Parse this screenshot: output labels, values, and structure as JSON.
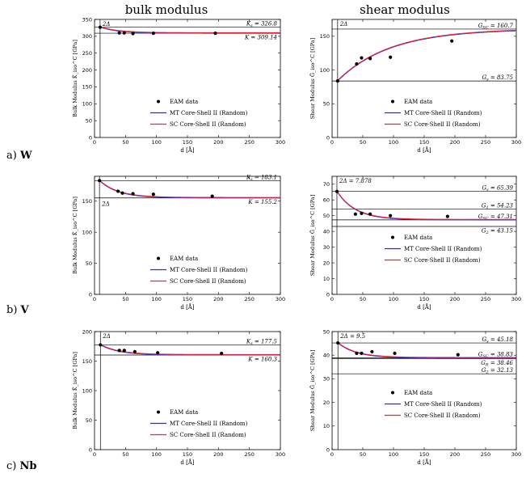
{
  "column_titles": [
    "bulk modulus",
    "shear modulus"
  ],
  "row_labels": [
    {
      "prefix": "a)",
      "element": "W"
    },
    {
      "prefix": "b)",
      "element": "V"
    },
    {
      "prefix": "c)",
      "element": "Nb"
    }
  ],
  "colors": {
    "mt": "#2b2bd6",
    "sc": "#e8263a",
    "points": "#000000",
    "axes": "#000000"
  },
  "chart_data": [
    {
      "id": "w-bulk",
      "type": "scatter+line",
      "xlabel": "d [Å]",
      "ylabel": "Bulk Modulus K̄_iso^C  [GPa]",
      "xlim": [
        0,
        300
      ],
      "ylim": [
        0,
        350
      ],
      "xticks": [
        0,
        50,
        100,
        150,
        200,
        250,
        300
      ],
      "yticks": [
        0,
        50,
        100,
        150,
        200,
        250,
        300,
        350
      ],
      "vline": {
        "x": 9,
        "label": "2Δ"
      },
      "hlines": [
        {
          "y": 326.8,
          "label": "K_s = 326.8",
          "pos": "above"
        },
        {
          "y": 309.14,
          "label": "K = 309.14",
          "pos": "below"
        }
      ],
      "points": [
        [
          9,
          326.8
        ],
        [
          40,
          310
        ],
        [
          48,
          310
        ],
        [
          62,
          308
        ],
        [
          95,
          309
        ],
        [
          195,
          309
        ]
      ],
      "curve": {
        "inf": 309.14,
        "surface": 326.8,
        "d0": 9
      },
      "series": [
        {
          "name": "EAM data"
        },
        {
          "name": "MT Core-Shell II (Random)"
        },
        {
          "name": "SC Core-Shell II (Random)"
        }
      ]
    },
    {
      "id": "w-shear",
      "type": "scatter+line",
      "xlabel": "d [Å]",
      "ylabel": "Shear Modulus Ḡ_iso^C  [GPa]",
      "xlim": [
        0,
        300
      ],
      "ylim": [
        0,
        175
      ],
      "xticks": [
        0,
        50,
        100,
        150,
        200,
        250,
        300
      ],
      "yticks": [
        0,
        50,
        100,
        150
      ],
      "vline": {
        "x": 9,
        "label": "2Δ"
      },
      "hlines": [
        {
          "y": 160.7,
          "label": "G_SC = 160.7",
          "pos": "above"
        },
        {
          "y": 83.75,
          "label": "G_s = 83.75",
          "pos": "above"
        }
      ],
      "points": [
        [
          9,
          83.75
        ],
        [
          40,
          109
        ],
        [
          48,
          118
        ],
        [
          62,
          117
        ],
        [
          95,
          119
        ],
        [
          195,
          143
        ]
      ],
      "curve": {
        "inf": 160.7,
        "surface": 83.75,
        "d0": 9
      },
      "series": [
        {
          "name": "EAM data"
        },
        {
          "name": "MT Core-Shell II (Random)"
        },
        {
          "name": "SC Core-Shell II (Random)"
        }
      ]
    },
    {
      "id": "v-bulk",
      "type": "scatter+line",
      "xlabel": "d [Å]",
      "ylabel": "Bulk Modulus K̄_iso^C  [GPa]",
      "xlim": [
        0,
        300
      ],
      "ylim": [
        0,
        190
      ],
      "xticks": [
        0,
        50,
        100,
        150,
        200,
        250,
        300
      ],
      "yticks": [
        0,
        50,
        100,
        150
      ],
      "vline": {
        "x": 8,
        "label": "2Δ"
      },
      "hlines": [
        {
          "y": 183.1,
          "label": "K_s = 183.1",
          "pos": "above"
        },
        {
          "y": 155.2,
          "label": "K = 155.2",
          "pos": "below"
        }
      ],
      "points": [
        [
          8,
          183.1
        ],
        [
          38,
          166
        ],
        [
          45,
          163
        ],
        [
          62,
          162
        ],
        [
          95,
          161
        ],
        [
          190,
          158
        ]
      ],
      "curve": {
        "inf": 155.2,
        "surface": 183.1,
        "d0": 8
      },
      "series": [
        {
          "name": "EAM data"
        },
        {
          "name": "MT Core-Shell II (Random)"
        },
        {
          "name": "SC Core-Shell II (Random)"
        }
      ]
    },
    {
      "id": "v-shear",
      "type": "scatter+line",
      "xlabel": "d [Å]",
      "ylabel": "Shear Modulus Ḡ_iso^C  [GPa]",
      "xlim": [
        0,
        300
      ],
      "ylim": [
        0,
        75
      ],
      "xticks": [
        0,
        50,
        100,
        150,
        200,
        250,
        300
      ],
      "yticks": [
        0,
        10,
        20,
        30,
        40,
        50,
        60,
        70
      ],
      "vline": {
        "x": 7.878,
        "label": "2Δ = 7.878"
      },
      "hlines": [
        {
          "y": 65.39,
          "label": "G_s = 65.39",
          "pos": "above"
        },
        {
          "y": 54.23,
          "label": "G_1 = 54.23",
          "pos": "above"
        },
        {
          "y": 47.31,
          "label": "G_SC = 47.31",
          "pos": "above"
        },
        {
          "y": 43.15,
          "label": "G_2 = 43.15",
          "pos": "below"
        }
      ],
      "points": [
        [
          8,
          65.39
        ],
        [
          38,
          51
        ],
        [
          48,
          51.5
        ],
        [
          62,
          51
        ],
        [
          95,
          50
        ],
        [
          188,
          49.5
        ]
      ],
      "curve": {
        "inf": 47.31,
        "surface": 65.39,
        "d0": 7.878
      },
      "series": [
        {
          "name": "EAM data"
        },
        {
          "name": "MT Core-Shell II (Random)"
        },
        {
          "name": "SC Core-Shell II (Random)"
        }
      ]
    },
    {
      "id": "nb-bulk",
      "type": "scatter+line",
      "xlabel": "d [Å]",
      "ylabel": "Bulk Modulus K̄_iso^C  [GPa]",
      "xlim": [
        0,
        300
      ],
      "ylim": [
        0,
        200
      ],
      "xticks": [
        0,
        50,
        100,
        150,
        200,
        250,
        300
      ],
      "yticks": [
        0,
        50,
        100,
        150,
        200
      ],
      "vline": {
        "x": 9.5,
        "label": "2Δ"
      },
      "hlines": [
        {
          "y": 177.5,
          "label": "K_s = 177.5",
          "pos": "above"
        },
        {
          "y": 160.3,
          "label": "K = 160.3",
          "pos": "below"
        }
      ],
      "points": [
        [
          9.5,
          177.5
        ],
        [
          40,
          168
        ],
        [
          48,
          168
        ],
        [
          65,
          166
        ],
        [
          102,
          164
        ],
        [
          205,
          163
        ]
      ],
      "curve": {
        "inf": 160.3,
        "surface": 177.5,
        "d0": 9.5
      },
      "series": [
        {
          "name": "EAM data"
        },
        {
          "name": "MT Core-Shell II (Random)"
        },
        {
          "name": "SC Core-Shell II (Random)"
        }
      ]
    },
    {
      "id": "nb-shear",
      "type": "scatter+line",
      "xlabel": "d [Å]",
      "ylabel": "Shear Modulus Ḡ_iso^C  [GPa]",
      "xlim": [
        0,
        300
      ],
      "ylim": [
        0,
        50
      ],
      "xticks": [
        0,
        50,
        100,
        150,
        200,
        250,
        300
      ],
      "yticks": [
        0,
        10,
        20,
        30,
        40,
        50
      ],
      "vline": {
        "x": 9.5,
        "label": "2Δ = 9.5"
      },
      "hlines": [
        {
          "y": 45.18,
          "label": "G_s = 45.18",
          "pos": "above"
        },
        {
          "y": 38.83,
          "label": "G_SC = 38.83",
          "pos": "above"
        },
        {
          "y": 38.46,
          "label": "G_R = 38.46",
          "pos": "below"
        },
        {
          "y": 32.13,
          "label": "G_2 = 32.13",
          "pos": "above"
        }
      ],
      "points": [
        [
          9.5,
          45.18
        ],
        [
          40,
          40.8
        ],
        [
          48,
          40.8
        ],
        [
          65,
          41.5
        ],
        [
          102,
          40.8
        ],
        [
          205,
          40.2
        ]
      ],
      "curve": {
        "inf": 38.83,
        "surface": 45.18,
        "d0": 9.5
      },
      "series": [
        {
          "name": "EAM data"
        },
        {
          "name": "MT Core-Shell II (Random)"
        },
        {
          "name": "SC Core-Shell II (Random)"
        }
      ]
    }
  ]
}
